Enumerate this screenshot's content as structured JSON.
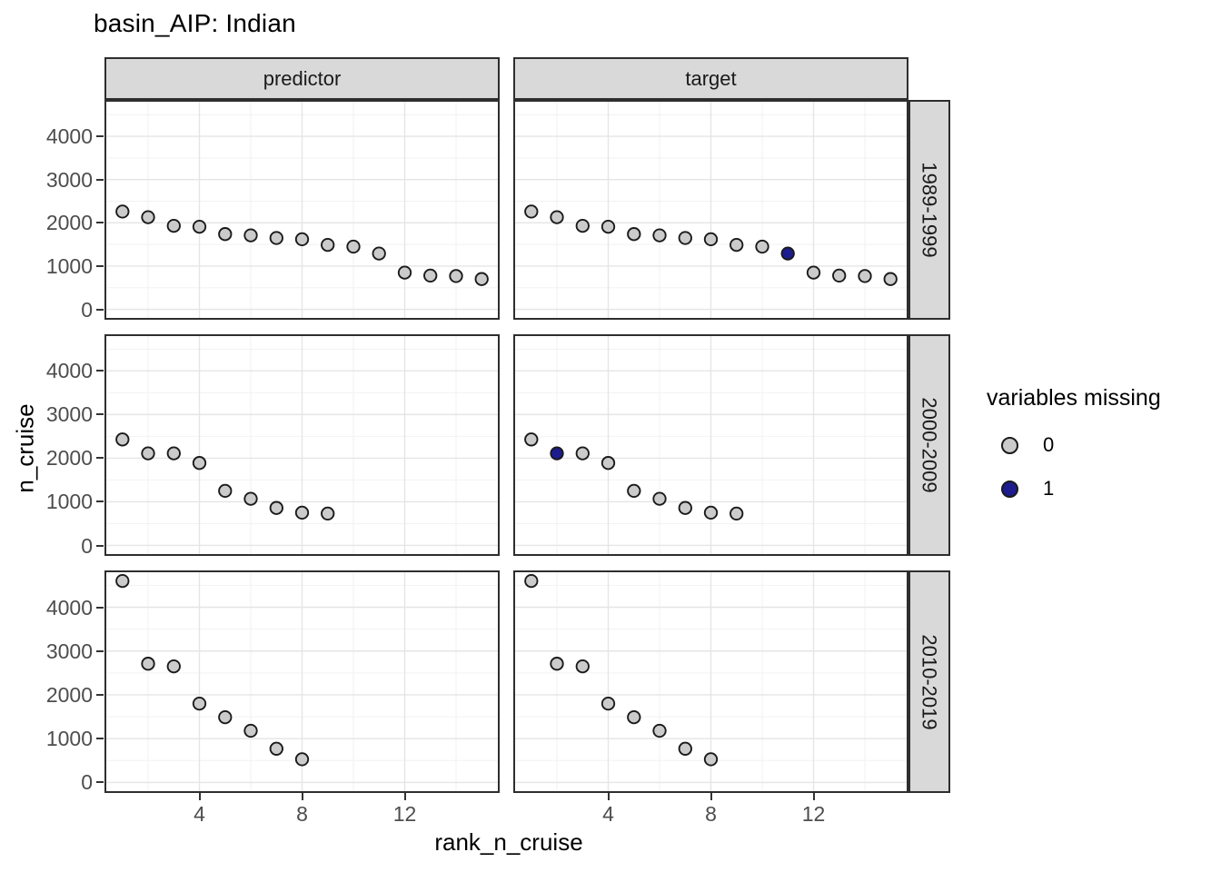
{
  "chart_data": {
    "type": "scatter",
    "title": "basin_AIP: Indian",
    "xlabel": "rank_n_cruise",
    "ylabel": "n_cruise",
    "col_facets": [
      "predictor",
      "target"
    ],
    "row_facets": [
      "1989-1999",
      "2000-2009",
      "2010-2019"
    ],
    "x_ticks": [
      4,
      8,
      12
    ],
    "y_ticks": [
      0,
      1000,
      2000,
      3000,
      4000
    ],
    "x_minor_gridlines": [
      2,
      6,
      10,
      14
    ],
    "y_minor_gridlines": [
      500,
      1500,
      2500,
      3500,
      4500
    ],
    "x_domain": [
      0.3,
      15.7
    ],
    "y_domain": [
      -240,
      4840
    ],
    "grid": "on",
    "legend_position": "right",
    "legend": {
      "title": "variables missing",
      "items": [
        {
          "label": "0",
          "color": "#cbcbcb"
        },
        {
          "label": "1",
          "color": "#1c1c8e"
        }
      ]
    },
    "point_colors": {
      "0": "#cbcbcb",
      "1": "#1c1c8e"
    },
    "panels": [
      {
        "row_facet": "1989-1999",
        "col_facet": "predictor",
        "points": [
          [
            1,
            2260,
            0
          ],
          [
            2,
            2130,
            0
          ],
          [
            3,
            1930,
            0
          ],
          [
            4,
            1910,
            0
          ],
          [
            5,
            1740,
            0
          ],
          [
            6,
            1710,
            0
          ],
          [
            7,
            1650,
            0
          ],
          [
            8,
            1620,
            0
          ],
          [
            9,
            1490,
            0
          ],
          [
            10,
            1450,
            0
          ],
          [
            11,
            1290,
            0
          ],
          [
            12,
            850,
            0
          ],
          [
            13,
            780,
            0
          ],
          [
            14,
            770,
            0
          ],
          [
            15,
            700,
            0
          ]
        ]
      },
      {
        "row_facet": "1989-1999",
        "col_facet": "target",
        "points": [
          [
            1,
            2260,
            0
          ],
          [
            2,
            2130,
            0
          ],
          [
            3,
            1930,
            0
          ],
          [
            4,
            1910,
            0
          ],
          [
            5,
            1740,
            0
          ],
          [
            6,
            1710,
            0
          ],
          [
            7,
            1650,
            0
          ],
          [
            8,
            1620,
            0
          ],
          [
            9,
            1490,
            0
          ],
          [
            10,
            1450,
            0
          ],
          [
            11,
            1290,
            1
          ],
          [
            12,
            850,
            0
          ],
          [
            13,
            780,
            0
          ],
          [
            14,
            770,
            0
          ],
          [
            15,
            700,
            0
          ]
        ]
      },
      {
        "row_facet": "2000-2009",
        "col_facet": "predictor",
        "points": [
          [
            1,
            2430,
            0
          ],
          [
            2,
            2110,
            0
          ],
          [
            3,
            2110,
            0
          ],
          [
            4,
            1890,
            0
          ],
          [
            5,
            1250,
            0
          ],
          [
            6,
            1070,
            0
          ],
          [
            7,
            860,
            0
          ],
          [
            8,
            750,
            0
          ],
          [
            9,
            730,
            0
          ]
        ]
      },
      {
        "row_facet": "2000-2009",
        "col_facet": "target",
        "points": [
          [
            1,
            2430,
            0
          ],
          [
            2,
            2110,
            1
          ],
          [
            3,
            2110,
            0
          ],
          [
            4,
            1890,
            0
          ],
          [
            5,
            1250,
            0
          ],
          [
            6,
            1070,
            0
          ],
          [
            7,
            860,
            0
          ],
          [
            8,
            750,
            0
          ],
          [
            9,
            730,
            0
          ]
        ]
      },
      {
        "row_facet": "2010-2019",
        "col_facet": "predictor",
        "points": [
          [
            1,
            4600,
            0
          ],
          [
            2,
            2710,
            0
          ],
          [
            3,
            2650,
            0
          ],
          [
            4,
            1800,
            0
          ],
          [
            5,
            1490,
            0
          ],
          [
            6,
            1180,
            0
          ],
          [
            7,
            770,
            0
          ],
          [
            8,
            530,
            0
          ]
        ]
      },
      {
        "row_facet": "2010-2019",
        "col_facet": "target",
        "points": [
          [
            1,
            4600,
            0
          ],
          [
            2,
            2710,
            0
          ],
          [
            3,
            2650,
            0
          ],
          [
            4,
            1800,
            0
          ],
          [
            5,
            1490,
            0
          ],
          [
            6,
            1180,
            0
          ],
          [
            7,
            770,
            0
          ],
          [
            8,
            530,
            0
          ]
        ]
      }
    ]
  }
}
